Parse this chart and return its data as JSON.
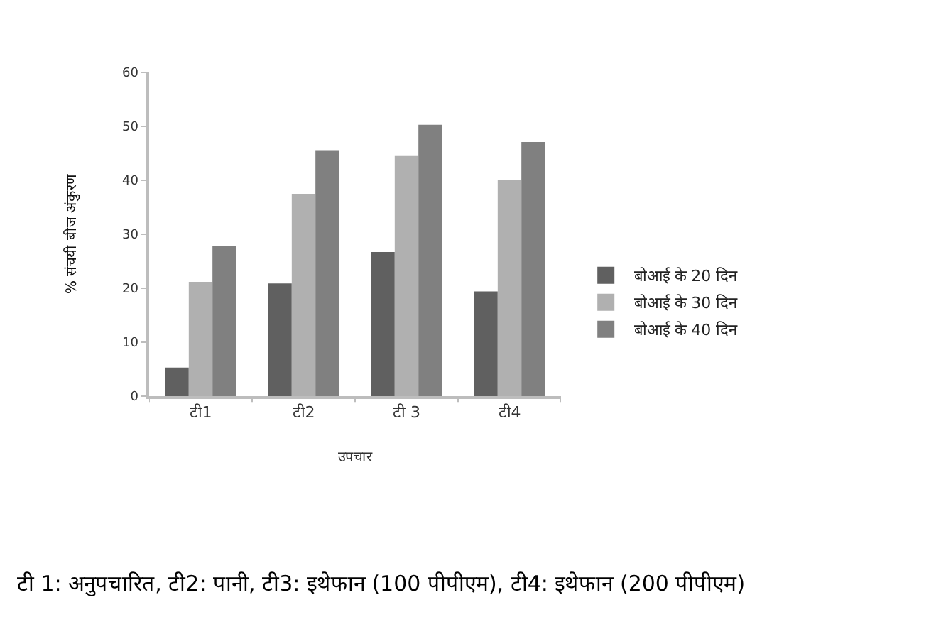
{
  "chart_data": {
    "type": "bar",
    "categories": [
      "टी1",
      "टी2",
      "टी 3",
      "टी4"
    ],
    "series": [
      {
        "name": "बोआई के 20 दिन",
        "color": "#606060",
        "values": [
          5.3,
          20.9,
          26.7,
          19.4
        ]
      },
      {
        "name": "बोआई के 30 दिन",
        "color": "#b0b0b0",
        "values": [
          21.2,
          37.5,
          44.5,
          40.1
        ]
      },
      {
        "name": "बोआई के 40 दिन",
        "color": "#808080",
        "values": [
          27.8,
          45.6,
          50.3,
          47.1
        ]
      }
    ],
    "xlabel": "उपचार",
    "ylabel": "% संचयी बीज अंकुरण",
    "ylim": [
      0,
      60
    ],
    "yticks": [
      0,
      10,
      20,
      30,
      40,
      50,
      60
    ],
    "legend": "right",
    "annotations": [
      "टी 1: अनुपचारित, टी2: पानी, टी3: इथेफान (100 पीपीएम), टी4: इथेफान (200 पीपीएम)"
    ]
  }
}
